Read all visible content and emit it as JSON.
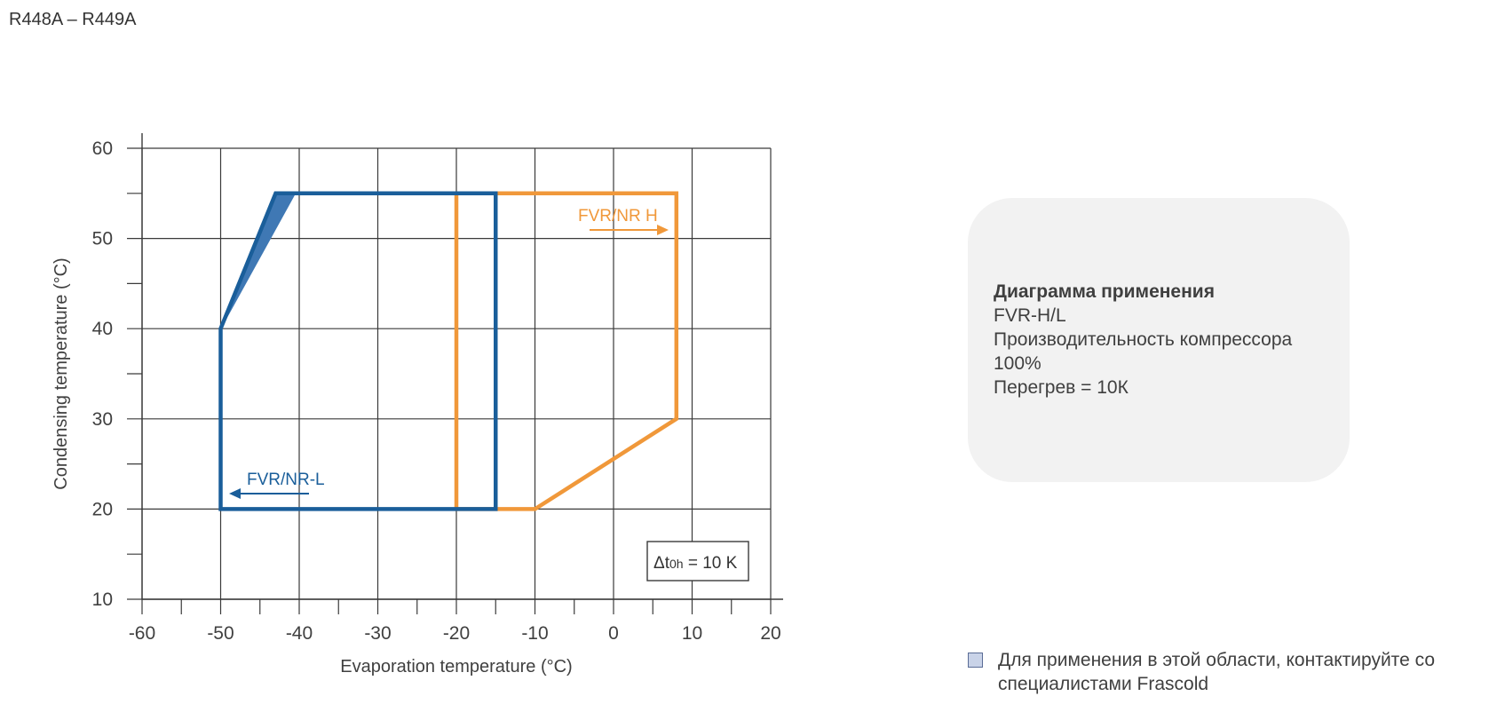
{
  "page": {
    "title": "R448A – R449A"
  },
  "chart_data": {
    "type": "area",
    "xlabel": "Evaporation temperature (°C)",
    "ylabel": "Condensing temperature (°C)",
    "xlim": [
      -60,
      20
    ],
    "ylim": [
      10,
      60
    ],
    "x_ticks": [
      -60,
      -50,
      -40,
      -30,
      -20,
      -10,
      0,
      10,
      20
    ],
    "x_tick_labels": [
      "-60",
      "-50",
      "-40",
      "-30",
      "-20",
      "-10",
      "0",
      "10",
      "20"
    ],
    "y_ticks": [
      10,
      20,
      30,
      40,
      50,
      60
    ],
    "y_tick_labels": [
      "10",
      "20",
      "30",
      "40",
      "50",
      "60"
    ],
    "grid": true,
    "series": [
      {
        "name": "FVR/NR-L",
        "color": "#1a5e9a",
        "points": [
          [
            -50,
            20
          ],
          [
            -50,
            40
          ],
          [
            -43,
            55
          ],
          [
            -15,
            55
          ],
          [
            -15,
            20
          ]
        ],
        "label_arrow": "left"
      },
      {
        "name": "FVR/NR H",
        "color": "#f0983a",
        "points": [
          [
            -20,
            20
          ],
          [
            -20,
            55
          ],
          [
            8,
            55
          ],
          [
            8,
            30
          ],
          [
            -10,
            20
          ]
        ],
        "label_arrow": "right"
      }
    ],
    "contact_region": {
      "color": "#3f78b4",
      "points": [
        [
          -50,
          40
        ],
        [
          -43,
          55
        ],
        [
          -40.5,
          55
        ]
      ]
    },
    "annotation": {
      "text_delta": "Δt",
      "text_sub": "0h",
      "text_value": " = 10 K"
    }
  },
  "info": {
    "title": "Диаграмма применения",
    "model": "FVR-H/L",
    "capacity_label": "Производительность  компрессора",
    "capacity_value": "100%",
    "superheat": "Перегрев = 10К"
  },
  "note": {
    "line1": "Для применения в этой области, контактируйте со",
    "line2": "специалистами Frascold",
    "swatch_color": "#c9d3e8"
  }
}
